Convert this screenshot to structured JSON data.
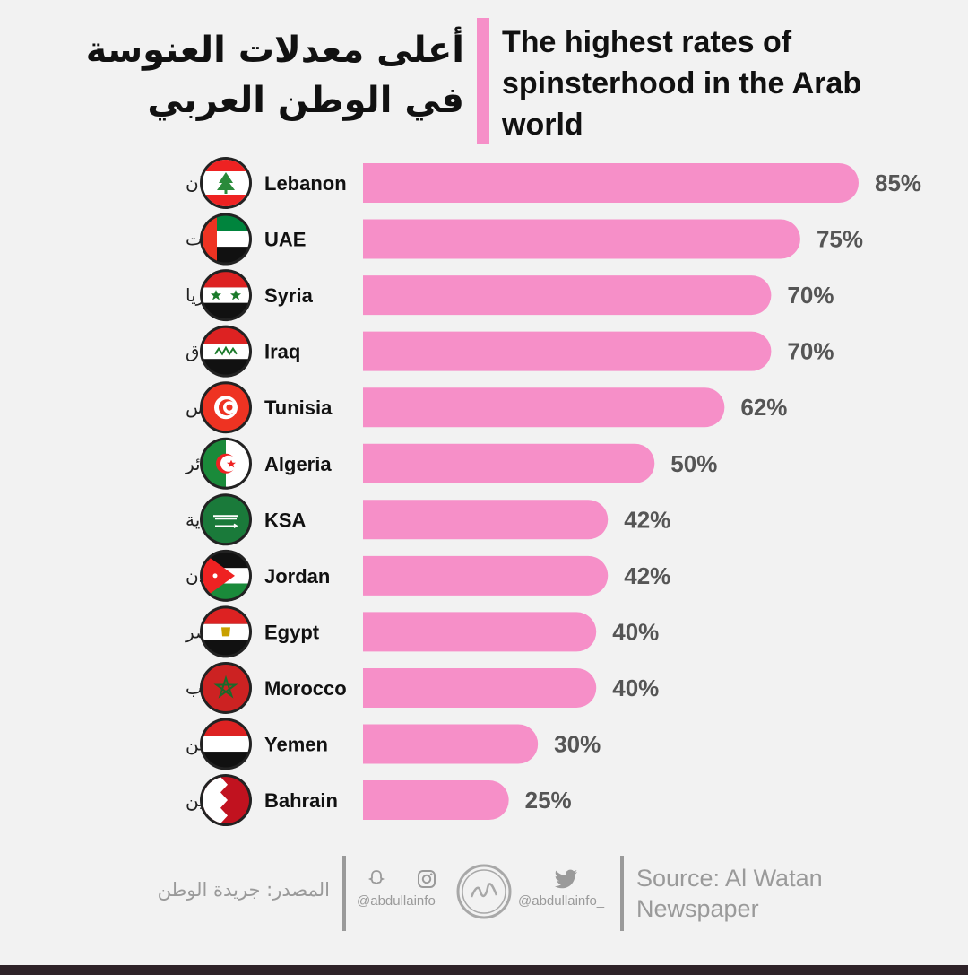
{
  "title_ar": "أعلى معدلات العنوسة في الوطن العربي",
  "title_en": "The highest rates of spinsterhood in the Arab world",
  "colors": {
    "bar": "#f68fc8",
    "accent": "#f68fc8",
    "value_text": "#555555",
    "footer_text": "#9a9a9a"
  },
  "chart_data": {
    "type": "bar",
    "orientation": "horizontal",
    "title": "The highest rates of spinsterhood in the Arab world",
    "categories": [
      "Lebanon",
      "UAE",
      "Syria",
      "Iraq",
      "Tunisia",
      "Algeria",
      "KSA",
      "Jordan",
      "Egypt",
      "Morocco",
      "Yemen",
      "Bahrain"
    ],
    "categories_ar": [
      "لبنان",
      "الامارات",
      "سوريا",
      "العراق",
      "تونس",
      "الجزائر",
      "السعودية",
      "الأردن",
      "مصر",
      "المغرب",
      "اليمن",
      "البحرين"
    ],
    "flags": [
      "lebanon-flag",
      "uae-flag",
      "syria-flag",
      "iraq-flag",
      "tunisia-flag",
      "algeria-flag",
      "ksa-flag",
      "jordan-flag",
      "egypt-flag",
      "morocco-flag",
      "yemen-flag",
      "bahrain-flag"
    ],
    "values": [
      85,
      75,
      70,
      70,
      62,
      50,
      42,
      42,
      40,
      40,
      30,
      25
    ],
    "value_labels": [
      "85%",
      "75%",
      "70%",
      "70%",
      "62%",
      "50%",
      "42%",
      "42%",
      "40%",
      "40%",
      "30%",
      "25%"
    ],
    "xlim": [
      0,
      85
    ],
    "grid": false
  },
  "footer": {
    "source_ar": "المصدر: جريدة الوطن",
    "handle_left": "@abdullainfo",
    "handle_right": "@abdullainfo_",
    "source_en": "Source: Al Watan Newspaper",
    "icons": [
      "snapchat-icon",
      "instagram-icon",
      "logo-seal",
      "twitter-icon"
    ]
  }
}
